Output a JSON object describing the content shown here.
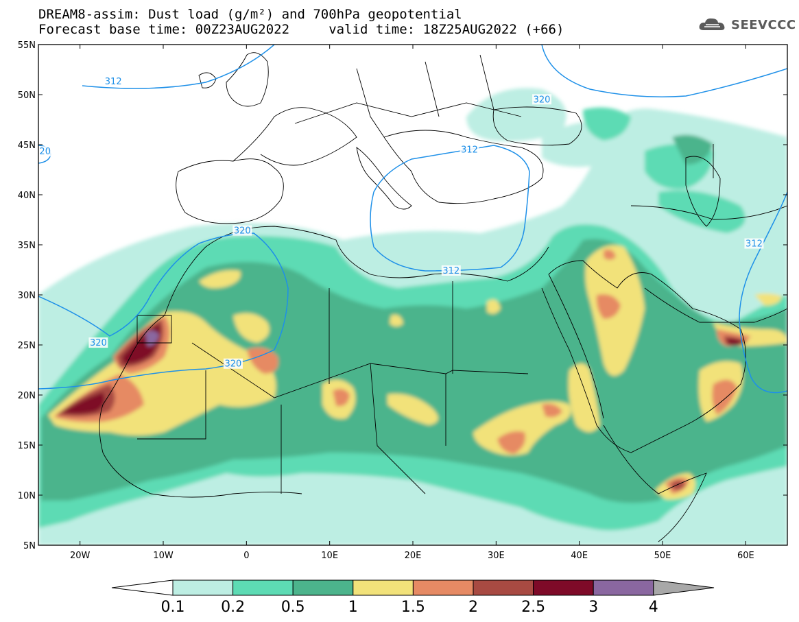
{
  "title_line1": "DREAM8-assim: Dust load (g/m²) and 700hPa geopotential",
  "title_line2": "Forecast base time: 00Z23AUG2022     valid time: 18Z25AUG2022 (+66)",
  "logo_text": "SEEVCCC",
  "chart_data": {
    "type": "heatmap",
    "x_ticks": [
      "20W",
      "10W",
      "0",
      "10E",
      "20E",
      "30E",
      "40E",
      "50E",
      "60E"
    ],
    "y_ticks": [
      "5N",
      "10N",
      "15N",
      "20N",
      "25N",
      "30N",
      "35N",
      "40N",
      "45N",
      "50N",
      "55N"
    ],
    "xlim_lon": [
      -25,
      65
    ],
    "ylim_lat": [
      5,
      55
    ],
    "contour_labels": [
      {
        "text": "312",
        "lon": -16,
        "lat": 51.3
      },
      {
        "text": "320",
        "lon": 35.5,
        "lat": 49.5
      },
      {
        "text": "20",
        "lon": -24.2,
        "lat": 44.3
      },
      {
        "text": "312",
        "lon": 26.8,
        "lat": 44.5
      },
      {
        "text": "320",
        "lon": -0.5,
        "lat": 36.4
      },
      {
        "text": "312",
        "lon": 61,
        "lat": 35.1
      },
      {
        "text": "312",
        "lon": 24.6,
        "lat": 32.4
      },
      {
        "text": "320",
        "lon": -17.8,
        "lat": 25.2
      },
      {
        "text": "320",
        "lon": -1.6,
        "lat": 23.1
      }
    ],
    "colorbar": {
      "labels": [
        "0.1",
        "0.2",
        "0.5",
        "1",
        "1.5",
        "2",
        "2.5",
        "3",
        "4"
      ],
      "colors": [
        "#bdeee3",
        "#5ddbb4",
        "#4cb48c",
        "#f2e27a",
        "#e68a64",
        "#a84a42",
        "#7e0a28",
        "#8a67a0"
      ],
      "under_color": "#ffffff",
      "over_color": "#a8a8a8"
    },
    "colors": {
      "contour": "#1e90e8",
      "coast": "#000000"
    }
  }
}
